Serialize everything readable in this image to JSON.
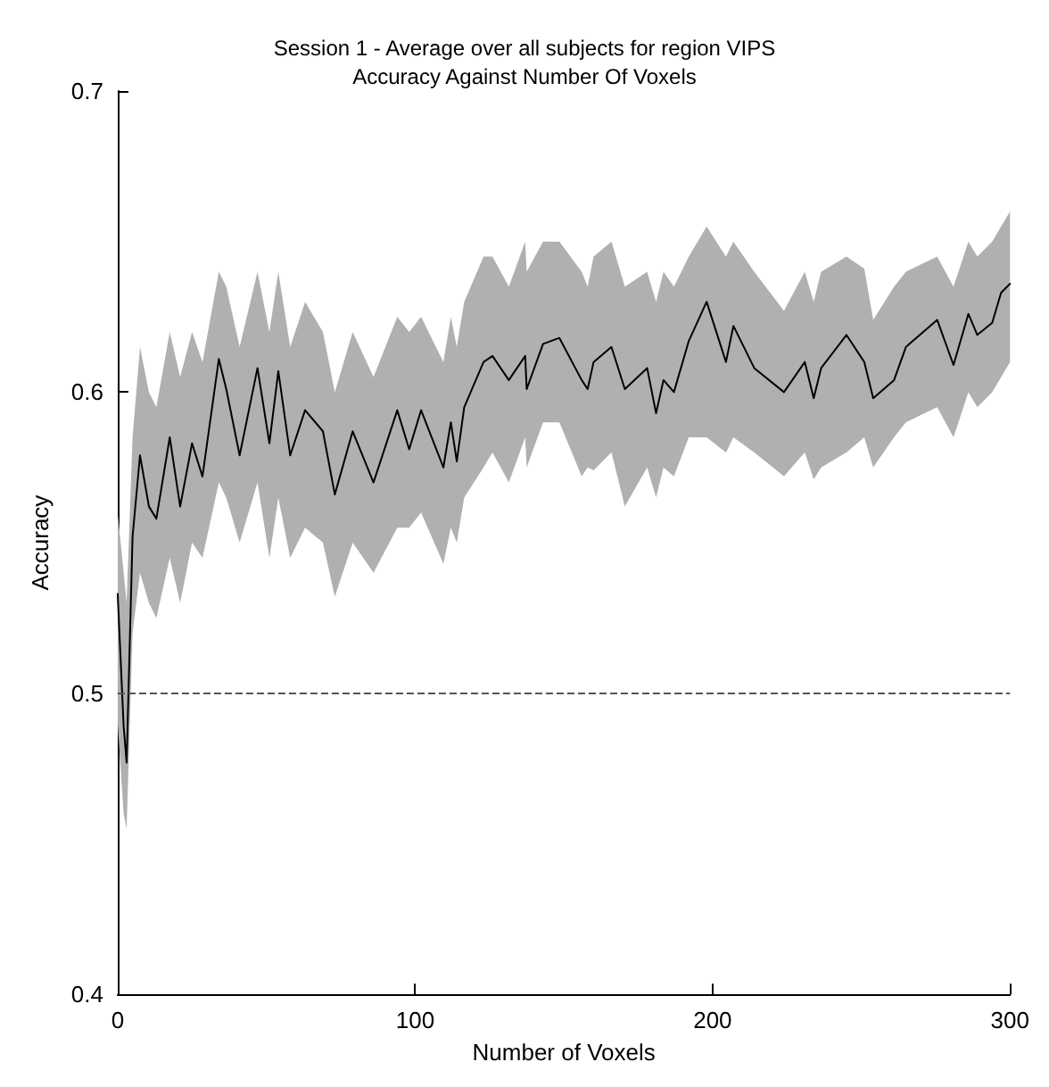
{
  "chart_data": {
    "type": "line",
    "title": "Session 1 - Average over all subjects for region VIPS",
    "subtitle": "Accuracy Against Number Of Voxels",
    "xlabel": "Number of Voxels",
    "ylabel": "Accuracy",
    "xlim": [
      0,
      300
    ],
    "xticks": [
      0,
      100,
      200,
      300
    ],
    "ylim": [
      0.4,
      0.7
    ],
    "yticks": [
      0.4,
      0.5,
      0.6,
      0.7
    ],
    "marker": "none",
    "line_style": "solid",
    "ref_lines": [
      {
        "axis": "y",
        "value": 0.5,
        "color": "#555555",
        "line_style": "dashed"
      }
    ],
    "series": [
      {
        "color": "#000000",
        "x": [
          0,
          2,
          3,
          5,
          7.5,
          10.5,
          13,
          17.5,
          21,
          25,
          28.5,
          34,
          36.5,
          41,
          47,
          51,
          54,
          58,
          63,
          69,
          73,
          79,
          86,
          94,
          98,
          102,
          109.5,
          112,
          114,
          116.5,
          123,
          126,
          131.5,
          137,
          137.5,
          143,
          148.5,
          156,
          158,
          160,
          166,
          170.5,
          178,
          181,
          183.5,
          187,
          192,
          198,
          204.5,
          207,
          214,
          224,
          231,
          234,
          236.5,
          245,
          251,
          254,
          261,
          265,
          275.5,
          281,
          286,
          289,
          294,
          297,
          300
        ],
        "values": [
          0.533,
          0.489,
          0.477,
          0.552,
          0.579,
          0.562,
          0.558,
          0.585,
          0.562,
          0.583,
          0.572,
          0.611,
          0.601,
          0.579,
          0.608,
          0.583,
          0.607,
          0.579,
          0.594,
          0.587,
          0.566,
          0.587,
          0.57,
          0.594,
          0.581,
          0.594,
          0.575,
          0.59,
          0.577,
          0.595,
          0.61,
          0.612,
          0.604,
          0.612,
          0.601,
          0.616,
          0.618,
          0.604,
          0.601,
          0.61,
          0.615,
          0.601,
          0.608,
          0.593,
          0.604,
          0.6,
          0.617,
          0.63,
          0.61,
          0.622,
          0.608,
          0.6,
          0.61,
          0.598,
          0.608,
          0.619,
          0.61,
          0.598,
          0.604,
          0.615,
          0.624,
          0.609,
          0.626,
          0.619,
          0.623,
          0.633,
          0.636
        ],
        "lower": [
          0.49,
          0.46,
          0.455,
          0.52,
          0.54,
          0.53,
          0.525,
          0.545,
          0.53,
          0.55,
          0.545,
          0.57,
          0.565,
          0.55,
          0.57,
          0.545,
          0.565,
          0.545,
          0.555,
          0.55,
          0.532,
          0.55,
          0.54,
          0.555,
          0.555,
          0.56,
          0.543,
          0.555,
          0.55,
          0.565,
          0.575,
          0.58,
          0.57,
          0.585,
          0.575,
          0.59,
          0.59,
          0.572,
          0.575,
          0.574,
          0.58,
          0.562,
          0.575,
          0.565,
          0.575,
          0.572,
          0.585,
          0.585,
          0.58,
          0.585,
          0.58,
          0.572,
          0.58,
          0.571,
          0.575,
          0.58,
          0.585,
          0.575,
          0.585,
          0.59,
          0.595,
          0.585,
          0.6,
          0.595,
          0.6,
          0.605,
          0.61
        ],
        "upper": [
          0.56,
          0.54,
          0.53,
          0.585,
          0.615,
          0.6,
          0.595,
          0.62,
          0.605,
          0.62,
          0.61,
          0.64,
          0.635,
          0.615,
          0.64,
          0.62,
          0.64,
          0.615,
          0.63,
          0.62,
          0.6,
          0.62,
          0.605,
          0.625,
          0.62,
          0.625,
          0.61,
          0.625,
          0.615,
          0.63,
          0.645,
          0.645,
          0.635,
          0.65,
          0.64,
          0.65,
          0.65,
          0.64,
          0.635,
          0.645,
          0.65,
          0.635,
          0.64,
          0.63,
          0.64,
          0.635,
          0.645,
          0.655,
          0.645,
          0.65,
          0.64,
          0.627,
          0.64,
          0.63,
          0.64,
          0.645,
          0.641,
          0.624,
          0.635,
          0.64,
          0.645,
          0.635,
          0.65,
          0.645,
          0.65,
          0.655,
          0.66
        ]
      }
    ]
  }
}
